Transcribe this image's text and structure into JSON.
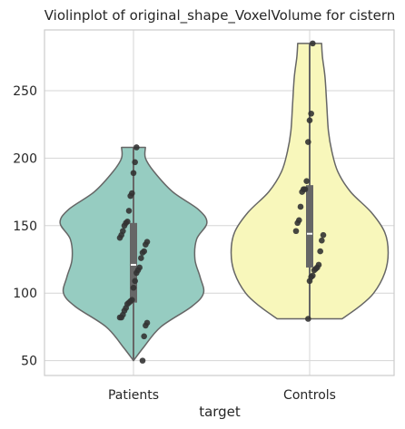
{
  "chart_data": {
    "type": "violin",
    "title": "Violinplot of original_shape_VoxelVolume for cistern",
    "xlabel": "target",
    "ylabel": "",
    "categories": [
      "Patients",
      "Controls"
    ],
    "ylim": [
      39,
      295
    ],
    "yticks": [
      50,
      100,
      150,
      200,
      250
    ],
    "grid": true,
    "colors": {
      "Patients": "#96ccc1",
      "Controls": "#f8f7bb",
      "outline": "#666666",
      "points": "#333333",
      "box": "#666666",
      "grid": "#d5d5d5",
      "spine": "#cccccc"
    },
    "series": [
      {
        "category": "Patients",
        "min": 50,
        "q1": 93,
        "median": 121,
        "q3": 152,
        "max": 208,
        "points": [
          208,
          197,
          189,
          174,
          172,
          161,
          153,
          152,
          150,
          146,
          143,
          141,
          138,
          136,
          131,
          130,
          126,
          119,
          117,
          115,
          109,
          104,
          95,
          94,
          93,
          92,
          89,
          87,
          84,
          82,
          82,
          78,
          76,
          68,
          50
        ],
        "profile": [
          [
            50,
            0.0
          ],
          [
            60,
            0.12
          ],
          [
            75,
            0.32
          ],
          [
            90,
            0.68
          ],
          [
            100,
            0.82
          ],
          [
            112,
            0.78
          ],
          [
            125,
            0.72
          ],
          [
            140,
            0.74
          ],
          [
            152,
            0.86
          ],
          [
            162,
            0.76
          ],
          [
            175,
            0.46
          ],
          [
            190,
            0.24
          ],
          [
            200,
            0.14
          ],
          [
            208,
            0.14
          ]
        ]
      },
      {
        "category": "Controls",
        "min": 81,
        "q1": 119,
        "median": 144,
        "q3": 180,
        "max": 285,
        "points": [
          285,
          233,
          228,
          212,
          183,
          177,
          177,
          175,
          164,
          154,
          152,
          146,
          143,
          139,
          131,
          121,
          119,
          118,
          117,
          113,
          112,
          109,
          81
        ],
        "profile": [
          [
            81,
            0.38
          ],
          [
            90,
            0.58
          ],
          [
            100,
            0.75
          ],
          [
            115,
            0.88
          ],
          [
            130,
            0.92
          ],
          [
            145,
            0.88
          ],
          [
            160,
            0.72
          ],
          [
            175,
            0.48
          ],
          [
            190,
            0.33
          ],
          [
            205,
            0.26
          ],
          [
            220,
            0.22
          ],
          [
            240,
            0.2
          ],
          [
            260,
            0.18
          ],
          [
            275,
            0.15
          ],
          [
            285,
            0.14
          ]
        ]
      }
    ]
  }
}
